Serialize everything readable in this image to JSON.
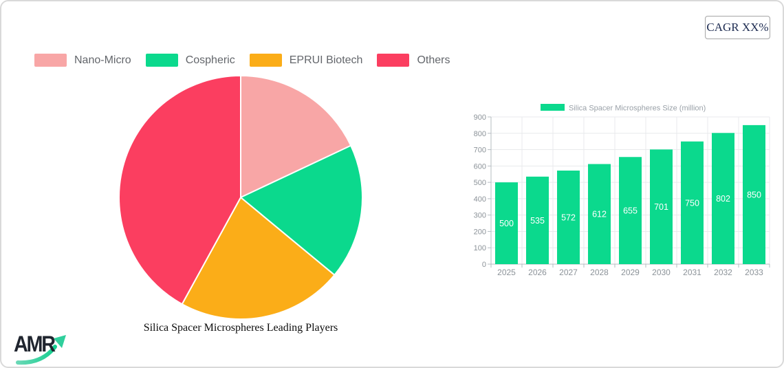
{
  "cagr_label": "CAGR XX%",
  "logo": {
    "text": "AMR"
  },
  "chart_data": [
    {
      "type": "pie",
      "title": "Silica Spacer Microspheres Leading Players",
      "labels": [
        "Nano-Micro",
        "Cospheric",
        "EPRUI Biotech",
        "Others"
      ],
      "values": [
        18,
        18,
        22,
        42
      ],
      "unit": "percent-share",
      "colors": [
        "#F8A6A6",
        "#0BD98D",
        "#FBAD18",
        "#FB3E60"
      ],
      "legend_position": "top",
      "start_angle_deg": 0,
      "direction": "clockwise",
      "slice_border_color": "#ffffff"
    },
    {
      "type": "bar",
      "legend": "Silica Spacer Microspheres Size (million)",
      "categories": [
        "2025",
        "2026",
        "2027",
        "2028",
        "2029",
        "2030",
        "2031",
        "2032",
        "2033"
      ],
      "values": [
        500,
        535,
        572,
        612,
        655,
        701,
        750,
        802,
        850
      ],
      "bar_color": "#0BD98D",
      "value_label_color": "#ffffff",
      "ylim": [
        0,
        900
      ],
      "ytick_step": 100,
      "grid": true,
      "legend_position": "top"
    }
  ]
}
